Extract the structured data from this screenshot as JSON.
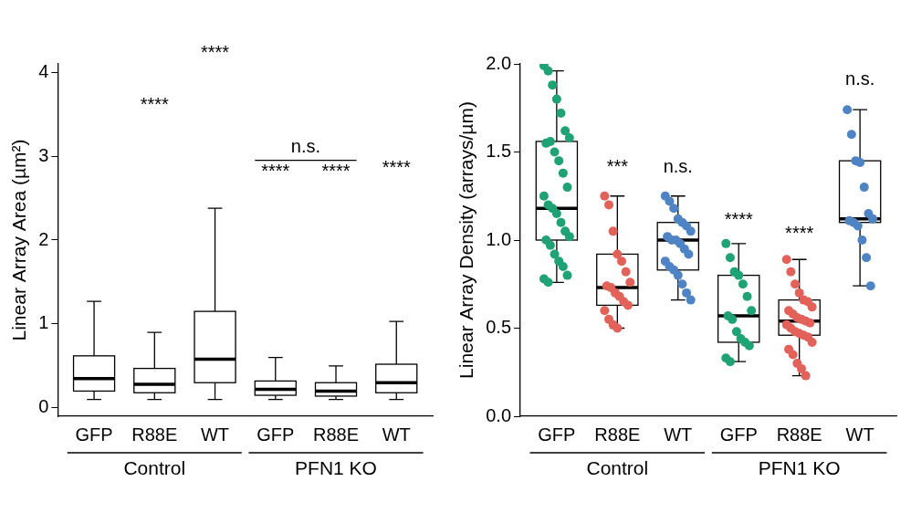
{
  "chart_data": [
    {
      "type": "box",
      "y_label": "Linear Array Area (µm²)",
      "categories": [
        "GFP",
        "R88E",
        "WT",
        "GFP",
        "R88E",
        "WT"
      ],
      "groups": [
        {
          "label": "Control",
          "members": [
            "GFP",
            "R88E",
            "WT"
          ]
        },
        {
          "label": "PFN1 KO",
          "members": [
            "GFP",
            "R88E",
            "WT"
          ]
        }
      ],
      "colors": [
        "#1fa374",
        "#e2625a",
        "#4f84c4",
        "#1fa374",
        "#e2625a",
        "#4f84c4"
      ],
      "boxes": [
        {
          "whisker_low": 0.1,
          "q1": 0.2,
          "median": 0.35,
          "q3": 0.62,
          "whisker_high": 1.27
        },
        {
          "whisker_low": 0.1,
          "q1": 0.18,
          "median": 0.28,
          "q3": 0.47,
          "whisker_high": 0.9
        },
        {
          "whisker_low": 0.1,
          "q1": 0.3,
          "median": 0.58,
          "q3": 1.15,
          "whisker_high": 2.38
        },
        {
          "whisker_low": 0.1,
          "q1": 0.15,
          "median": 0.22,
          "q3": 0.32,
          "whisker_high": 0.6
        },
        {
          "whisker_low": 0.1,
          "q1": 0.14,
          "median": 0.2,
          "q3": 0.3,
          "whisker_high": 0.5
        },
        {
          "whisker_low": 0.1,
          "q1": 0.18,
          "median": 0.3,
          "q3": 0.52,
          "whisker_high": 1.03
        }
      ],
      "annotations": [
        {
          "text": "****",
          "at": 1,
          "y": 3.5
        },
        {
          "text": "****",
          "at": 2,
          "y": 4.12
        },
        {
          "text": "****",
          "at": 3,
          "y": 2.7
        },
        {
          "text": "****",
          "at": 4,
          "y": 2.7
        },
        {
          "text": "****",
          "at": 5,
          "y": 2.75
        },
        {
          "text": "n.s.",
          "from": 3,
          "to": 4,
          "y": 2.95
        }
      ],
      "ylim": [
        -0.1,
        4.1
      ],
      "yticks": [
        0,
        1,
        2,
        3,
        4
      ],
      "grid": false
    },
    {
      "type": "box",
      "y_label": "Linear Array Density (arrays/µm)",
      "categories": [
        "GFP",
        "R88E",
        "WT",
        "GFP",
        "R88E",
        "WT"
      ],
      "groups": [
        {
          "label": "Control",
          "members": [
            "GFP",
            "R88E",
            "WT"
          ]
        },
        {
          "label": "PFN1 KO",
          "members": [
            "GFP",
            "R88E",
            "WT"
          ]
        }
      ],
      "colors": [
        "#1fa374",
        "#e2625a",
        "#4f84c4",
        "#1fa374",
        "#e2625a",
        "#4f84c4"
      ],
      "boxes": [
        {
          "whisker_low": 0.76,
          "q1": 1.0,
          "median": 1.18,
          "q3": 1.56,
          "whisker_high": 1.96
        },
        {
          "whisker_low": 0.5,
          "q1": 0.63,
          "median": 0.73,
          "q3": 0.92,
          "whisker_high": 1.25
        },
        {
          "whisker_low": 0.66,
          "q1": 0.83,
          "median": 1.0,
          "q3": 1.1,
          "whisker_high": 1.25
        },
        {
          "whisker_low": 0.31,
          "q1": 0.42,
          "median": 0.57,
          "q3": 0.8,
          "whisker_high": 0.98
        },
        {
          "whisker_low": 0.23,
          "q1": 0.46,
          "median": 0.54,
          "q3": 0.66,
          "whisker_high": 0.89
        },
        {
          "whisker_low": 0.74,
          "q1": 1.1,
          "median": 1.12,
          "q3": 1.45,
          "whisker_high": 1.74
        }
      ],
      "points": [
        [
          1.99,
          1.96,
          1.88,
          1.8,
          1.72,
          1.62,
          1.58,
          1.55,
          1.56,
          1.5,
          1.45,
          1.38,
          1.3,
          1.25,
          1.2,
          1.18,
          1.15,
          1.1,
          1.05,
          1.02,
          1.0,
          0.97,
          0.92,
          0.88,
          0.85,
          0.8,
          0.78,
          0.76
        ],
        [
          1.25,
          1.2,
          1.05,
          0.92,
          0.88,
          0.82,
          0.76,
          0.74,
          0.73,
          0.7,
          0.68,
          0.65,
          0.63,
          0.6,
          0.55,
          0.52,
          0.5
        ],
        [
          1.25,
          1.22,
          1.18,
          1.12,
          1.1,
          1.08,
          1.05,
          1.02,
          1.0,
          1.0,
          0.98,
          0.95,
          0.92,
          0.88,
          0.85,
          0.83,
          0.8,
          0.75,
          0.7,
          0.66
        ],
        [
          0.98,
          0.9,
          0.82,
          0.8,
          0.75,
          0.68,
          0.6,
          0.57,
          0.55,
          0.48,
          0.44,
          0.42,
          0.4,
          0.33,
          0.31
        ],
        [
          0.89,
          0.82,
          0.75,
          0.7,
          0.66,
          0.65,
          0.62,
          0.6,
          0.58,
          0.56,
          0.55,
          0.54,
          0.53,
          0.52,
          0.5,
          0.48,
          0.47,
          0.46,
          0.45,
          0.42,
          0.38,
          0.35,
          0.3,
          0.27,
          0.23
        ],
        [
          1.74,
          1.6,
          1.45,
          1.44,
          1.3,
          1.15,
          1.12,
          1.11,
          1.1,
          1.08,
          1.0,
          0.9,
          0.74
        ]
      ],
      "annotations": [
        {
          "text": "***",
          "at": 1,
          "y": 1.36
        },
        {
          "text": "n.s.",
          "at": 2,
          "y": 1.36
        },
        {
          "text": "****",
          "at": 3,
          "y": 1.06
        },
        {
          "text": "****",
          "at": 4,
          "y": 0.98
        },
        {
          "text": "n.s.",
          "at": 5,
          "y": 1.86
        }
      ],
      "ylim": [
        0,
        2.0
      ],
      "yticks": [
        {
          "value": 0,
          "label": "0.0"
        },
        {
          "value": 0.5,
          "label": "0.5"
        },
        {
          "value": 1.0,
          "label": "1.0"
        },
        {
          "value": 1.5,
          "label": "1.5"
        },
        {
          "value": 2.0,
          "label": "2.0"
        }
      ],
      "grid": false
    }
  ]
}
